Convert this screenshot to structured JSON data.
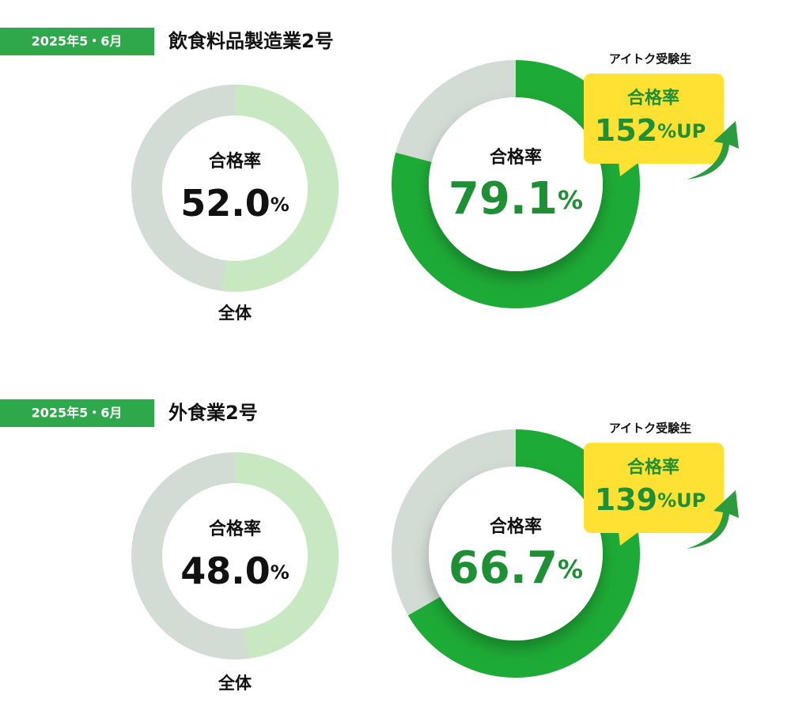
{
  "sections": [
    {
      "badge": "2025年5・6月",
      "title": "飲食料品製造業2号"
    },
    {
      "badge": "2025年5・6月",
      "title": "外食業2号"
    }
  ],
  "chart_data": [
    {
      "type": "donut",
      "label": "合格率",
      "values": [
        52.0
      ],
      "value_labels": [
        "52.0%"
      ],
      "caption": "全体",
      "color": "#c7e8c1",
      "track_color": "#d3dbd5"
    },
    {
      "type": "donut",
      "label": "合格率",
      "values": [
        79.1
      ],
      "value_labels": [
        "79.1%"
      ],
      "color": "#1eaa36",
      "track_color": "#d3dbd5",
      "callout": {
        "header": "アイトク受験生",
        "label": "合格率",
        "value": 152,
        "value_label": "152%UP"
      }
    },
    {
      "type": "donut",
      "label": "合格率",
      "values": [
        48.0
      ],
      "value_labels": [
        "48.0%"
      ],
      "caption": "全体",
      "color": "#c7e8c1",
      "track_color": "#d3dbd5"
    },
    {
      "type": "donut",
      "label": "合格率",
      "values": [
        66.7
      ],
      "value_labels": [
        "66.7%"
      ],
      "color": "#1eaa36",
      "track_color": "#d3dbd5",
      "callout": {
        "header": "アイトク受験生",
        "label": "合格率",
        "value": 139,
        "value_label": "139%UP"
      }
    }
  ]
}
